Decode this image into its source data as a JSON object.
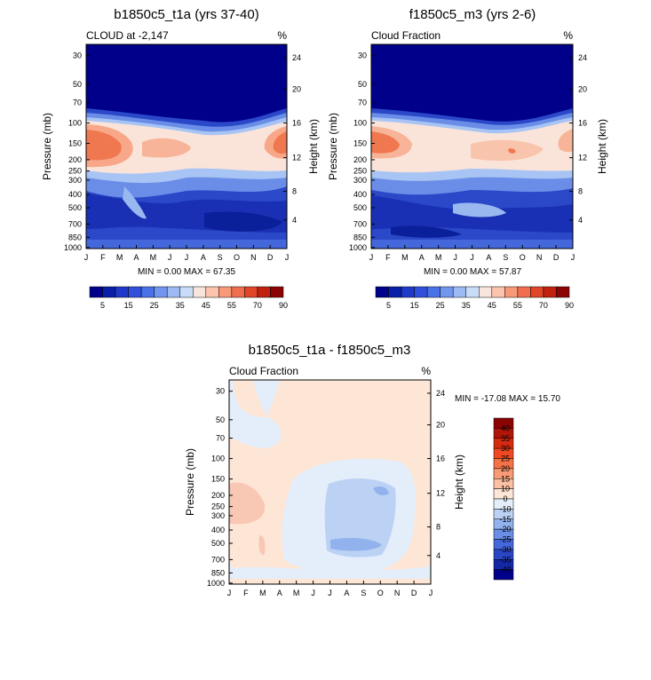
{
  "chart_data": [
    {
      "type": "heatmap",
      "title": "b1850c5_t1a (yrs 37-40)",
      "subtitle_left": "CLOUD at -2,147",
      "subtitle_right": "%",
      "xlabel": "",
      "ylabel": "Pressure (mb)",
      "ylabel_right": "Height (km)",
      "x_ticks": [
        "J",
        "F",
        "M",
        "A",
        "M",
        "J",
        "J",
        "A",
        "S",
        "O",
        "N",
        "D",
        "J"
      ],
      "y_ticks": [
        "30",
        "50",
        "70",
        "100",
        "150",
        "200",
        "250",
        "300",
        "400",
        "500",
        "700",
        "850",
        "1000"
      ],
      "y_right_ticks": [
        "24",
        "20",
        "16",
        "12",
        "8",
        "4"
      ],
      "min_max_text": "MIN =   0.00 MAX =  67.35",
      "colorbar_labels": [
        "5",
        "15",
        "25",
        "35",
        "45",
        "55",
        "70",
        "90"
      ],
      "colorbar_colors": [
        "#00008a",
        "#0a1fa8",
        "#1f3ac8",
        "#3050dc",
        "#4a72e8",
        "#7296ee",
        "#9dbaf4",
        "#c8dcf8",
        "#f8e6de",
        "#fcc4ac",
        "#f89a7a",
        "#f06e4e",
        "#e04628",
        "#c0220e",
        "#8a0404"
      ],
      "grid": false
    },
    {
      "type": "heatmap",
      "title": "f1850c5_m3 (yrs 2-6)",
      "subtitle_left": "Cloud Fraction",
      "subtitle_right": "%",
      "xlabel": "",
      "ylabel": "Pressure (mb)",
      "ylabel_right": "Height (km)",
      "x_ticks": [
        "J",
        "F",
        "M",
        "A",
        "M",
        "J",
        "J",
        "A",
        "S",
        "O",
        "N",
        "D",
        "J"
      ],
      "y_ticks": [
        "30",
        "50",
        "70",
        "100",
        "150",
        "200",
        "250",
        "300",
        "400",
        "500",
        "700",
        "850",
        "1000"
      ],
      "y_right_ticks": [
        "24",
        "20",
        "16",
        "12",
        "8",
        "4"
      ],
      "min_max_text": "MIN =   0.00 MAX =  57.87",
      "colorbar_labels": [
        "5",
        "15",
        "25",
        "35",
        "45",
        "55",
        "70",
        "90"
      ],
      "colorbar_colors": [
        "#00008a",
        "#0a1fa8",
        "#1f3ac8",
        "#3050dc",
        "#4a72e8",
        "#7296ee",
        "#9dbaf4",
        "#c8dcf8",
        "#f8e6de",
        "#fcc4ac",
        "#f89a7a",
        "#f06e4e",
        "#e04628",
        "#c0220e",
        "#8a0404"
      ],
      "grid": false
    },
    {
      "type": "heatmap",
      "title": "b1850c5_t1a - f1850c5_m3",
      "subtitle_left": "Cloud Fraction",
      "subtitle_right": "%",
      "xlabel": "",
      "ylabel": "Pressure (mb)",
      "ylabel_right": "Height (km)",
      "x_ticks": [
        "J",
        "F",
        "M",
        "A",
        "M",
        "J",
        "J",
        "A",
        "S",
        "O",
        "N",
        "D",
        "J"
      ],
      "y_ticks": [
        "30",
        "50",
        "70",
        "100",
        "150",
        "200",
        "250",
        "300",
        "400",
        "500",
        "700",
        "850",
        "1000"
      ],
      "y_right_ticks": [
        "24",
        "20",
        "16",
        "12",
        "8",
        "4"
      ],
      "min_max_text": "MIN = -17.08 MAX =  15.70",
      "colorbar_labels": [
        "40",
        "35",
        "30",
        "25",
        "20",
        "15",
        "10",
        "0",
        "-10",
        "-15",
        "-20",
        "-25",
        "-30",
        "-35",
        "-40"
      ],
      "colorbar_colors": [
        "#8a0404",
        "#b01608",
        "#d62a10",
        "#f04822",
        "#f47248",
        "#f89a74",
        "#fcc0a2",
        "#fde6d6",
        "#e4eefa",
        "#bcd2f4",
        "#92b2ee",
        "#6a8ee6",
        "#4468dc",
        "#2a46c4",
        "#1428a6",
        "#00008a"
      ],
      "grid": false
    }
  ]
}
